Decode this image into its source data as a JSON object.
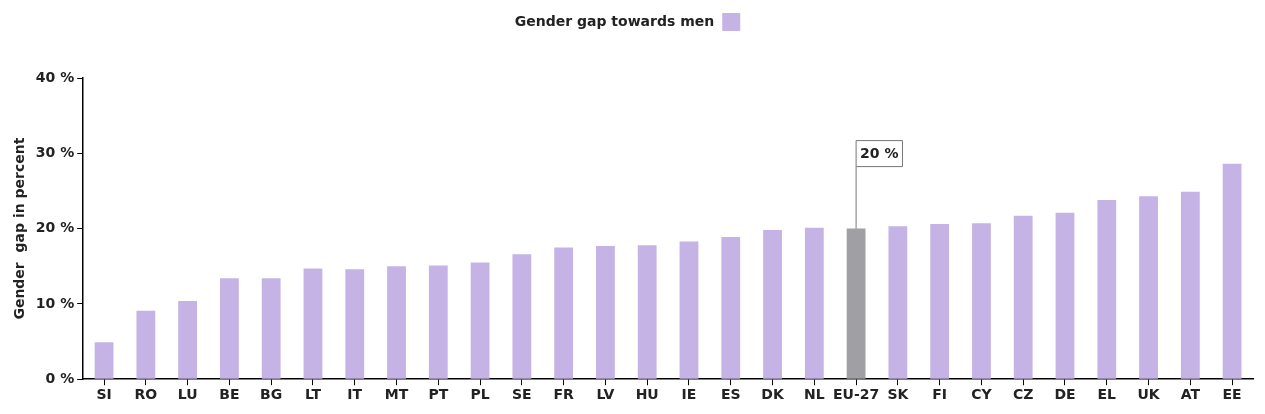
{
  "chart_data": {
    "type": "bar",
    "ylabel": "Gender  gap in percent",
    "legend": "top",
    "categories": [
      "SI",
      "RO",
      "LU",
      "BE",
      "BG",
      "LT",
      "IT",
      "MT",
      "PT",
      "PL",
      "SE",
      "FR",
      "LV",
      "HU",
      "IE",
      "ES",
      "DK",
      "NL",
      "EU-27",
      "SK",
      "FI",
      "CY",
      "CZ",
      "DE",
      "EL",
      "UK",
      "AT",
      "EE"
    ],
    "series": [
      {
        "name": "Gender gap towards men",
        "color": "#c5b3e6",
        "colors": [
          "#c5b3e6",
          "#c5b3e6",
          "#c5b3e6",
          "#c5b3e6",
          "#c5b3e6",
          "#c5b3e6",
          "#c5b3e6",
          "#c5b3e6",
          "#c5b3e6",
          "#c5b3e6",
          "#c5b3e6",
          "#c5b3e6",
          "#c5b3e6",
          "#c5b3e6",
          "#c5b3e6",
          "#c5b3e6",
          "#c5b3e6",
          "#c5b3e6",
          "#a09fa4",
          "#c5b3e6",
          "#c5b3e6",
          "#c5b3e6",
          "#c5b3e6",
          "#c5b3e6",
          "#c5b3e6",
          "#c5b3e6",
          "#c5b3e6",
          "#c5b3e6"
        ],
        "values": [
          4.9,
          9.1,
          10.4,
          13.4,
          13.4,
          14.7,
          14.6,
          15.0,
          15.1,
          15.5,
          16.6,
          17.5,
          17.7,
          17.8,
          18.3,
          18.9,
          19.8,
          20.1,
          20,
          20.3,
          20.6,
          20.7,
          21.7,
          22.1,
          23.8,
          24.3,
          24.9,
          28.6
        ]
      }
    ],
    "ylim": [
      0,
      40
    ],
    "yticks": [
      {
        "value": 0,
        "label": "0 %"
      },
      {
        "value": 10,
        "label": "10 %"
      },
      {
        "value": 20,
        "label": "20 %"
      },
      {
        "value": 30,
        "label": "30 %"
      },
      {
        "value": 40,
        "label": "40 %"
      }
    ],
    "annotations": [
      {
        "text": "20 %",
        "x": "EU-27",
        "y": 20
      }
    ]
  }
}
